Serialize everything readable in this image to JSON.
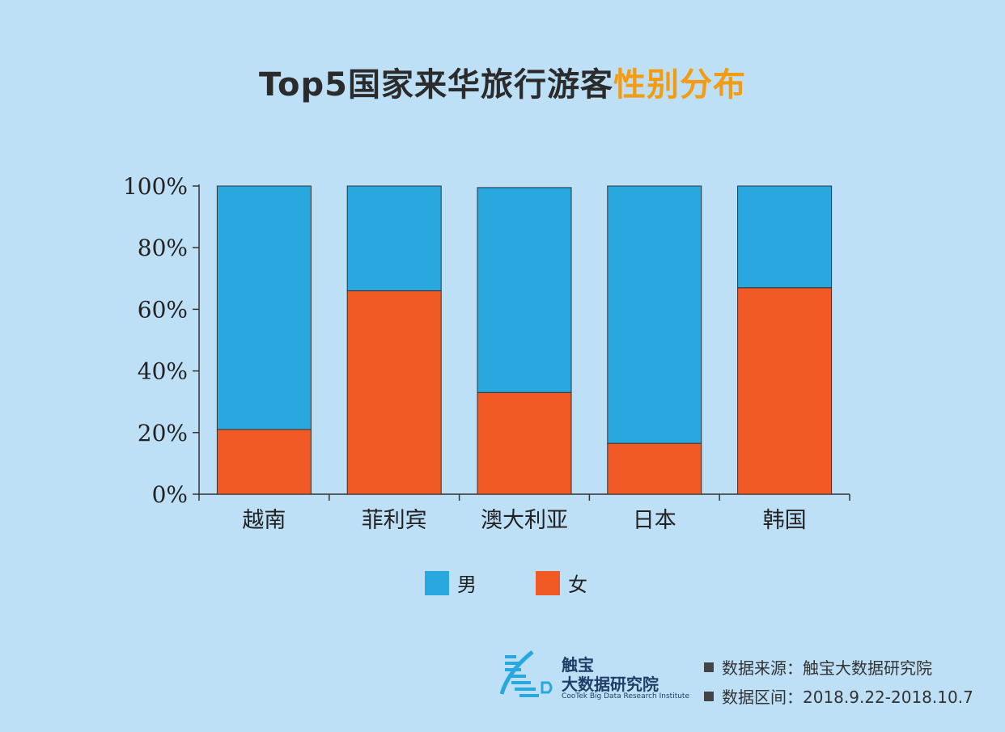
{
  "title": {
    "main": "Top5国家来华旅行游客",
    "highlight": "性别分布"
  },
  "chart_data": {
    "type": "bar",
    "stacked": true,
    "categories": [
      "越南",
      "菲利宾",
      "澳大利亚",
      "日本",
      "韩国"
    ],
    "series": [
      {
        "name": "女",
        "color": "#f15a24",
        "values": [
          21,
          66,
          33,
          16.5,
          67
        ]
      },
      {
        "name": "男",
        "color": "#29a8e0",
        "values": [
          79,
          34,
          66.5,
          83.5,
          33
        ]
      }
    ],
    "y_ticks": [
      "0%",
      "20%",
      "40%",
      "60%",
      "80%",
      "100%"
    ],
    "ylim": [
      0,
      100
    ],
    "legend_position": "bottom-center"
  },
  "legend": [
    {
      "label": "男",
      "color": "#29a8e0"
    },
    {
      "label": "女",
      "color": "#f15a24"
    }
  ],
  "source": {
    "line1": "数据来源：触宝大数据研究院",
    "line2": "数据区间：2018.9.22-2018.10.7"
  },
  "logo": {
    "line1": "触宝",
    "line2": "大数据研究院",
    "line3": "CooTek Big Data Research Institute"
  }
}
